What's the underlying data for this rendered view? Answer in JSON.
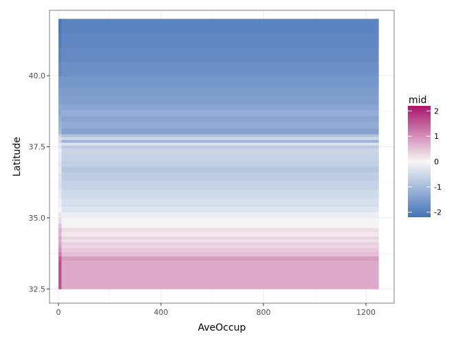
{
  "chart_data": {
    "type": "heatmap",
    "title": "",
    "xlabel": "AveOccup",
    "ylabel": "Latitude",
    "xlim": [
      -35,
      1310
    ],
    "ylim": [
      32.0,
      42.3
    ],
    "x_ticks": [
      0,
      400,
      800,
      1200
    ],
    "y_ticks": [
      32.5,
      35.0,
      37.5,
      40.0
    ],
    "x_tick_labels": [
      "0",
      "400",
      "800",
      "1200"
    ],
    "y_tick_labels": [
      "32.5",
      "35.0",
      "37.5",
      "40.0"
    ],
    "x_range": [
      0,
      1250
    ],
    "y_range": [
      32.5,
      42.0
    ],
    "grid": true,
    "legend": {
      "title": "mid",
      "placement": "right",
      "range": [
        -2.2,
        2.2
      ],
      "ticks": [
        2,
        1,
        0,
        -1,
        -2
      ],
      "tick_labels": [
        "2",
        "1",
        "0",
        "-1",
        "-2"
      ],
      "low_color": "#4472b8",
      "mid_color": "#f7f7f7",
      "high_color": "#a8146c"
    },
    "rows": [
      {
        "y0": 32.5,
        "y1": 33.5,
        "left": 1.6,
        "value": 0.75
      },
      {
        "y0": 33.5,
        "y1": 33.65,
        "left": 1.5,
        "value": 0.85
      },
      {
        "y0": 33.65,
        "y1": 33.8,
        "left": 1.2,
        "value": 0.55
      },
      {
        "y0": 33.8,
        "y1": 33.95,
        "left": 1.0,
        "value": 0.45
      },
      {
        "y0": 33.95,
        "y1": 34.05,
        "left": 0.9,
        "value": 0.3
      },
      {
        "y0": 34.05,
        "y1": 34.15,
        "left": 0.8,
        "value": 0.4
      },
      {
        "y0": 34.15,
        "y1": 34.25,
        "left": 0.7,
        "value": 0.2
      },
      {
        "y0": 34.25,
        "y1": 34.35,
        "left": 0.8,
        "value": 0.35
      },
      {
        "y0": 34.35,
        "y1": 34.5,
        "left": 0.6,
        "value": 0.15
      },
      {
        "y0": 34.5,
        "y1": 34.65,
        "left": 0.7,
        "value": 0.25
      },
      {
        "y0": 34.65,
        "y1": 34.8,
        "left": 0.5,
        "value": 0.05
      },
      {
        "y0": 34.8,
        "y1": 35.0,
        "left": 0.3,
        "value": -0.05
      },
      {
        "y0": 35.0,
        "y1": 35.2,
        "left": 0.2,
        "value": -0.15
      },
      {
        "y0": 35.2,
        "y1": 35.4,
        "left": 0.0,
        "value": -0.3
      },
      {
        "y0": 35.4,
        "y1": 35.7,
        "left": -0.1,
        "value": -0.4
      },
      {
        "y0": 35.7,
        "y1": 36.0,
        "left": -0.2,
        "value": -0.5
      },
      {
        "y0": 36.0,
        "y1": 36.3,
        "left": -0.3,
        "value": -0.6
      },
      {
        "y0": 36.3,
        "y1": 36.6,
        "left": -0.3,
        "value": -0.7
      },
      {
        "y0": 36.6,
        "y1": 36.8,
        "left": -0.2,
        "value": -0.8
      },
      {
        "y0": 36.8,
        "y1": 37.0,
        "left": -0.3,
        "value": -0.65
      },
      {
        "y0": 37.0,
        "y1": 37.3,
        "left": -0.2,
        "value": -0.6
      },
      {
        "y0": 37.3,
        "y1": 37.45,
        "left": -0.1,
        "value": -0.55
      },
      {
        "y0": 37.45,
        "y1": 37.55,
        "left": -0.3,
        "value": -0.75
      },
      {
        "y0": 37.55,
        "y1": 37.65,
        "left": -0.2,
        "value": -0.35
      },
      {
        "y0": 37.65,
        "y1": 37.75,
        "left": -0.5,
        "value": -1.1
      },
      {
        "y0": 37.75,
        "y1": 37.85,
        "left": -0.3,
        "value": -0.5
      },
      {
        "y0": 37.85,
        "y1": 37.95,
        "left": -0.6,
        "value": -0.9
      },
      {
        "y0": 37.95,
        "y1": 38.15,
        "left": -1.0,
        "value": -1.4
      },
      {
        "y0": 38.15,
        "y1": 38.4,
        "left": -1.1,
        "value": -1.25
      },
      {
        "y0": 38.4,
        "y1": 38.6,
        "left": -1.2,
        "value": -1.35
      },
      {
        "y0": 38.6,
        "y1": 38.8,
        "left": -1.3,
        "value": -1.2
      },
      {
        "y0": 38.8,
        "y1": 39.0,
        "left": -1.3,
        "value": -1.35
      },
      {
        "y0": 39.0,
        "y1": 39.3,
        "left": -1.4,
        "value": -1.45
      },
      {
        "y0": 39.3,
        "y1": 39.6,
        "left": -1.5,
        "value": -1.5
      },
      {
        "y0": 39.6,
        "y1": 40.0,
        "left": -1.6,
        "value": -1.6
      },
      {
        "y0": 40.0,
        "y1": 40.5,
        "left": -1.8,
        "value": -1.7
      },
      {
        "y0": 40.5,
        "y1": 41.0,
        "left": -1.9,
        "value": -1.8
      },
      {
        "y0": 41.0,
        "y1": 41.5,
        "left": -2.0,
        "value": -1.85
      },
      {
        "y0": 41.5,
        "y1": 42.0,
        "left": -2.1,
        "value": -1.9
      }
    ]
  }
}
